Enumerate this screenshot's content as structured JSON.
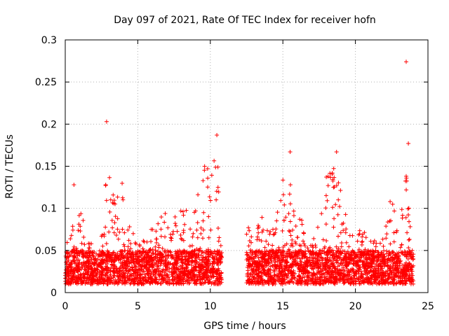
{
  "chart_data": {
    "type": "scatter",
    "title": "Day 097 of 2021, Rate Of TEC Index for receiver hofn",
    "xlabel": "GPS time / hours",
    "ylabel": "ROTI / TECUs",
    "xlim": [
      0,
      25
    ],
    "ylim": [
      0,
      0.3
    ],
    "xticks": [
      0,
      5,
      10,
      15,
      20,
      25
    ],
    "yticks": [
      0,
      0.05,
      0.1,
      0.15,
      0.2,
      0.25,
      0.3
    ],
    "xtick_labels": [
      "0",
      "5",
      "10",
      "15",
      "20",
      "25"
    ],
    "ytick_labels": [
      "0",
      "0.05",
      "0.1",
      "0.15",
      "0.2",
      "0.25",
      "0.3"
    ],
    "grid": true,
    "marker": "plus",
    "color": "#ff0000",
    "data_gap_hours": [
      10.8,
      12.5
    ],
    "notable_points": [
      {
        "x": 2.85,
        "y": 0.203
      },
      {
        "x": 23.5,
        "y": 0.274
      },
      {
        "x": 10.45,
        "y": 0.187
      },
      {
        "x": 15.5,
        "y": 0.167
      },
      {
        "x": 18.7,
        "y": 0.167
      },
      {
        "x": 23.65,
        "y": 0.177
      },
      {
        "x": 0.6,
        "y": 0.128
      }
    ],
    "envelope": [
      {
        "x": 0.0,
        "y": 0.06
      },
      {
        "x": 0.5,
        "y": 0.08
      },
      {
        "x": 1.0,
        "y": 0.1
      },
      {
        "x": 1.5,
        "y": 0.07
      },
      {
        "x": 2.0,
        "y": 0.05
      },
      {
        "x": 2.5,
        "y": 0.1
      },
      {
        "x": 3.0,
        "y": 0.15
      },
      {
        "x": 3.5,
        "y": 0.11
      },
      {
        "x": 4.0,
        "y": 0.14
      },
      {
        "x": 4.5,
        "y": 0.07
      },
      {
        "x": 5.0,
        "y": 0.07
      },
      {
        "x": 5.5,
        "y": 0.06
      },
      {
        "x": 6.0,
        "y": 0.08
      },
      {
        "x": 6.5,
        "y": 0.09
      },
      {
        "x": 7.0,
        "y": 0.1
      },
      {
        "x": 7.5,
        "y": 0.09
      },
      {
        "x": 8.0,
        "y": 0.1
      },
      {
        "x": 8.5,
        "y": 0.1
      },
      {
        "x": 9.0,
        "y": 0.12
      },
      {
        "x": 9.5,
        "y": 0.16
      },
      {
        "x": 10.0,
        "y": 0.16
      },
      {
        "x": 10.5,
        "y": 0.18
      },
      {
        "x": 10.8,
        "y": 0.09
      },
      {
        "x": 12.5,
        "y": 0.08
      },
      {
        "x": 13.0,
        "y": 0.07
      },
      {
        "x": 13.5,
        "y": 0.09
      },
      {
        "x": 14.0,
        "y": 0.09
      },
      {
        "x": 14.5,
        "y": 0.08
      },
      {
        "x": 15.0,
        "y": 0.14
      },
      {
        "x": 15.5,
        "y": 0.16
      },
      {
        "x": 16.0,
        "y": 0.12
      },
      {
        "x": 16.5,
        "y": 0.07
      },
      {
        "x": 17.0,
        "y": 0.06
      },
      {
        "x": 17.5,
        "y": 0.09
      },
      {
        "x": 18.0,
        "y": 0.14
      },
      {
        "x": 18.5,
        "y": 0.15
      },
      {
        "x": 19.0,
        "y": 0.13
      },
      {
        "x": 19.5,
        "y": 0.08
      },
      {
        "x": 20.0,
        "y": 0.07
      },
      {
        "x": 20.5,
        "y": 0.08
      },
      {
        "x": 21.0,
        "y": 0.06
      },
      {
        "x": 21.5,
        "y": 0.07
      },
      {
        "x": 22.0,
        "y": 0.07
      },
      {
        "x": 22.5,
        "y": 0.12
      },
      {
        "x": 23.0,
        "y": 0.08
      },
      {
        "x": 23.5,
        "y": 0.15
      },
      {
        "x": 24.0,
        "y": 0.08
      }
    ],
    "baseline_range": [
      0.01,
      0.05
    ]
  }
}
